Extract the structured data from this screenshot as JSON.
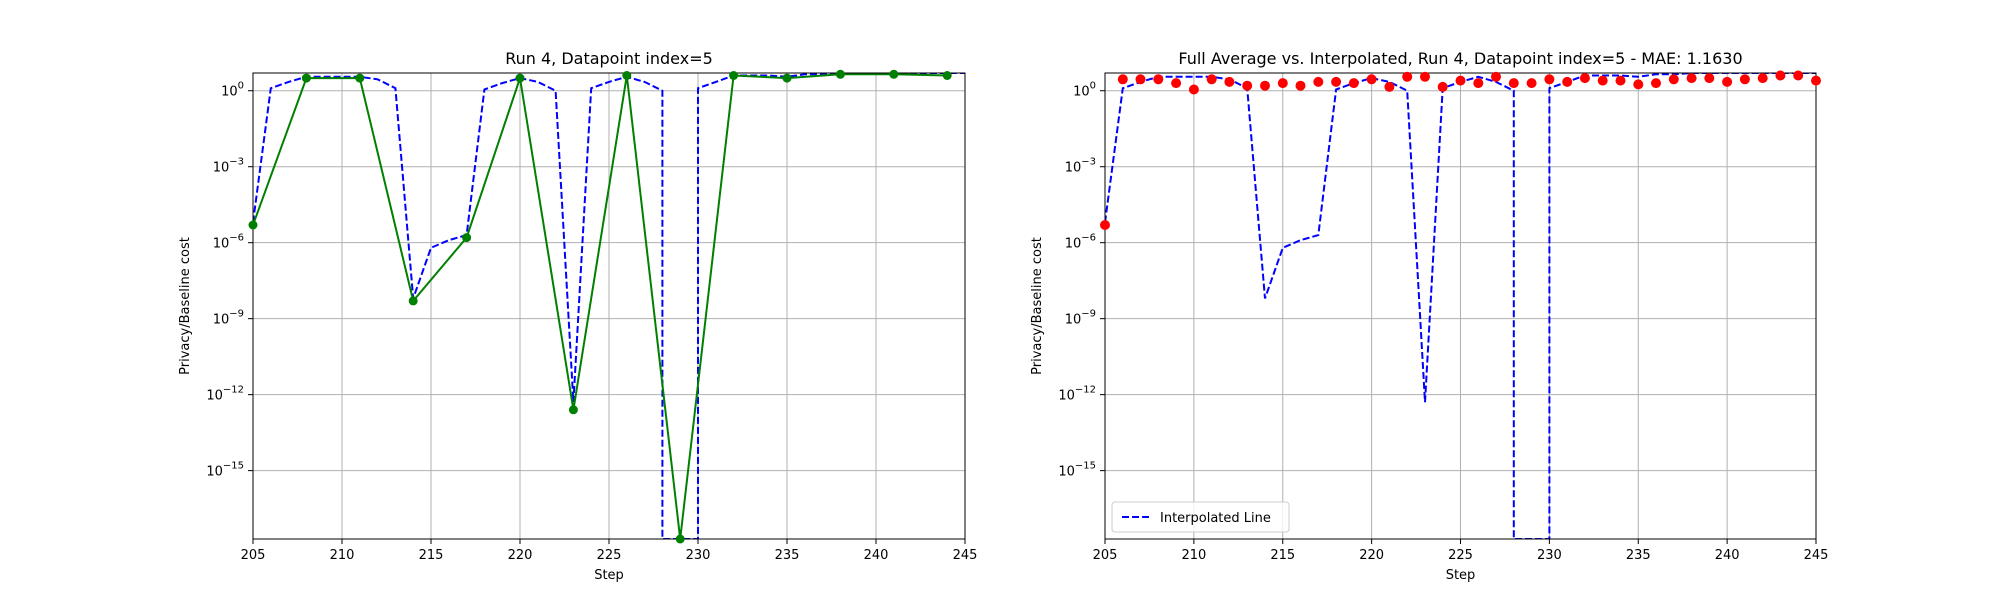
{
  "chart_data": [
    {
      "type": "line",
      "title": "Run 4, Datapoint index=5",
      "xlabel": "Step",
      "ylabel": "Privacy/Baseline cost",
      "xlim": [
        205,
        245
      ],
      "yscale": "log",
      "ylim_log10": [
        -17.7,
        0.7
      ],
      "xticks": [
        205,
        210,
        215,
        220,
        225,
        230,
        235,
        240,
        245
      ],
      "yticks": [
        {
          "exp": 0,
          "label": "10^0"
        },
        {
          "exp": -3,
          "label": "10^-3"
        },
        {
          "exp": -6,
          "label": "10^-6"
        },
        {
          "exp": -9,
          "label": "10^-9"
        },
        {
          "exp": -12,
          "label": "10^-12"
        },
        {
          "exp": -15,
          "label": "10^-15"
        }
      ],
      "grid": true,
      "legend": null,
      "series": [
        {
          "style": "dashed",
          "color": "#0000ff",
          "x": [
            205,
            206,
            207,
            208,
            209,
            210,
            211,
            212,
            213,
            214,
            215,
            216,
            217,
            218,
            219,
            220,
            221,
            222,
            223,
            224,
            225,
            226,
            227,
            228,
            228,
            229,
            230,
            230,
            231,
            232,
            233,
            234,
            235,
            236,
            237,
            238,
            239,
            240,
            241,
            242,
            243,
            244,
            245
          ],
          "y_log10": [
            -5.2,
            0.1,
            0.35,
            0.55,
            0.55,
            0.55,
            0.55,
            0.45,
            0.1,
            -8.2,
            -6.2,
            -5.9,
            -5.7,
            0.05,
            0.3,
            0.5,
            0.35,
            0.0,
            -12.3,
            0.1,
            0.35,
            0.55,
            0.35,
            0.0,
            -17.7,
            -17.7,
            -17.7,
            0.1,
            0.35,
            0.6,
            0.6,
            0.6,
            0.55,
            0.65,
            0.65,
            0.7,
            0.7,
            0.7,
            0.7,
            0.7,
            0.7,
            0.7,
            0.7
          ]
        },
        {
          "style": "solid-markers",
          "color": "#008000",
          "x": [
            205,
            208,
            211,
            214,
            217,
            220,
            223,
            226,
            229,
            232,
            235,
            238,
            241,
            244
          ],
          "y_log10": [
            -5.3,
            0.5,
            0.5,
            -8.3,
            -5.8,
            0.5,
            -12.6,
            0.6,
            -17.7,
            0.6,
            0.5,
            0.65,
            0.65,
            0.6
          ]
        }
      ]
    },
    {
      "type": "line",
      "title": "Full Average vs. Interpolated, Run 4, Datapoint index=5 - MAE: 1.1630",
      "xlabel": "Step",
      "ylabel": "Privacy/Baseline cost",
      "xlim": [
        205,
        245
      ],
      "yscale": "log",
      "ylim_log10": [
        -17.7,
        0.7
      ],
      "xticks": [
        205,
        210,
        215,
        220,
        225,
        230,
        235,
        240,
        245
      ],
      "yticks": [
        {
          "exp": 0,
          "label": "10^0"
        },
        {
          "exp": -3,
          "label": "10^-3"
        },
        {
          "exp": -6,
          "label": "10^-6"
        },
        {
          "exp": -9,
          "label": "10^-9"
        },
        {
          "exp": -12,
          "label": "10^-12"
        },
        {
          "exp": -15,
          "label": "10^-15"
        }
      ],
      "grid": true,
      "legend": {
        "position": "lower-left",
        "entries": [
          "Interpolated Line"
        ]
      },
      "series": [
        {
          "name": "Interpolated Line",
          "style": "dashed",
          "color": "#0000ff",
          "x": [
            205,
            206,
            207,
            208,
            209,
            210,
            211,
            212,
            213,
            214,
            215,
            216,
            217,
            218,
            219,
            220,
            221,
            222,
            223,
            224,
            225,
            226,
            227,
            228,
            228,
            229,
            230,
            230,
            231,
            232,
            233,
            234,
            235,
            236,
            237,
            238,
            239,
            240,
            241,
            242,
            243,
            244,
            245
          ],
          "y_log10": [
            -5.2,
            0.1,
            0.35,
            0.55,
            0.55,
            0.55,
            0.55,
            0.45,
            0.1,
            -8.2,
            -6.2,
            -5.9,
            -5.7,
            0.05,
            0.3,
            0.5,
            0.35,
            0.0,
            -12.3,
            0.1,
            0.35,
            0.55,
            0.35,
            0.0,
            -17.7,
            -17.7,
            -17.7,
            0.1,
            0.35,
            0.6,
            0.6,
            0.6,
            0.55,
            0.65,
            0.65,
            0.7,
            0.7,
            0.7,
            0.7,
            0.7,
            0.7,
            0.7,
            0.7
          ]
        },
        {
          "style": "scatter",
          "color": "#ff0000",
          "x": [
            205,
            206,
            207,
            208,
            209,
            210,
            211,
            212,
            213,
            214,
            215,
            216,
            217,
            218,
            219,
            220,
            221,
            222,
            223,
            224,
            225,
            226,
            227,
            228,
            229,
            230,
            231,
            232,
            233,
            234,
            235,
            236,
            237,
            238,
            239,
            240,
            241,
            242,
            243,
            244,
            245
          ],
          "y_log10": [
            -5.3,
            0.45,
            0.45,
            0.45,
            0.3,
            0.05,
            0.45,
            0.35,
            0.2,
            0.2,
            0.3,
            0.2,
            0.35,
            0.35,
            0.3,
            0.45,
            0.15,
            0.55,
            0.55,
            0.15,
            0.4,
            0.3,
            0.55,
            0.3,
            0.3,
            0.45,
            0.35,
            0.5,
            0.4,
            0.4,
            0.25,
            0.3,
            0.45,
            0.5,
            0.5,
            0.35,
            0.45,
            0.5,
            0.6,
            0.6,
            0.4
          ]
        }
      ]
    }
  ]
}
